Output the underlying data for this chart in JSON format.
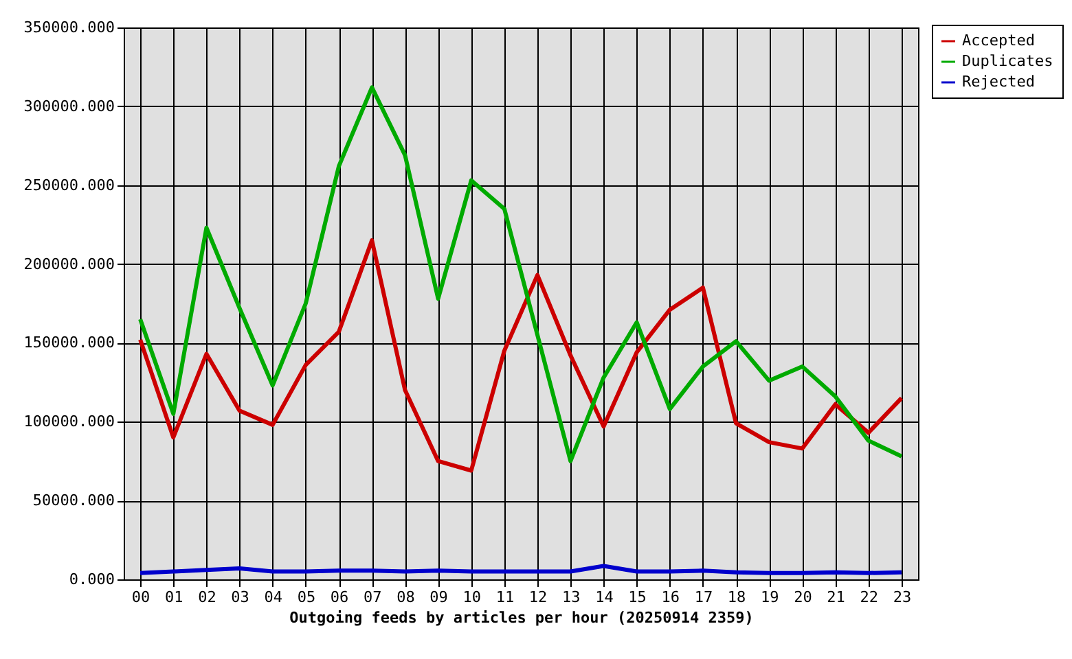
{
  "chart_data": {
    "type": "line",
    "xlabel": "Outgoing feeds by articles per hour (20250914 2359)",
    "categories": [
      "00",
      "01",
      "02",
      "03",
      "04",
      "05",
      "06",
      "07",
      "08",
      "09",
      "10",
      "11",
      "12",
      "13",
      "14",
      "15",
      "16",
      "17",
      "18",
      "19",
      "20",
      "21",
      "22",
      "23"
    ],
    "series": [
      {
        "name": "Accepted",
        "color": "#cc0000",
        "values": [
          152000,
          90000,
          143000,
          107000,
          98000,
          136000,
          157000,
          215000,
          120000,
          75000,
          69000,
          145000,
          193000,
          142000,
          97000,
          144000,
          171000,
          185000,
          99000,
          87000,
          83000,
          111000,
          93000,
          115000
        ]
      },
      {
        "name": "Duplicates",
        "color": "#00aa00",
        "values": [
          165000,
          105000,
          223000,
          172000,
          123000,
          175000,
          262000,
          312000,
          269000,
          178000,
          253000,
          235000,
          155000,
          75000,
          128000,
          163000,
          108000,
          135000,
          151000,
          126000,
          135000,
          116000,
          88000,
          78000
        ]
      },
      {
        "name": "Rejected",
        "color": "#0000cc",
        "values": [
          4000,
          5000,
          6000,
          7000,
          5000,
          5000,
          5500,
          5500,
          5000,
          5500,
          5000,
          5000,
          5000,
          5000,
          8500,
          5000,
          5000,
          5500,
          4500,
          4000,
          4000,
          4500,
          4000,
          4500
        ]
      }
    ],
    "ylim": [
      0,
      350000
    ],
    "yticks": [
      {
        "value": 0,
        "label": "0.000"
      },
      {
        "value": 50000,
        "label": "50000.000"
      },
      {
        "value": 100000,
        "label": "100000.000"
      },
      {
        "value": 150000,
        "label": "150000.000"
      },
      {
        "value": 200000,
        "label": "200000.000"
      },
      {
        "value": 250000,
        "label": "250000.000"
      },
      {
        "value": 300000,
        "label": "300000.000"
      },
      {
        "value": 350000,
        "label": "350000.000"
      }
    ],
    "grid": true,
    "legend": "top right",
    "marker": "none",
    "line_style": "solid"
  }
}
